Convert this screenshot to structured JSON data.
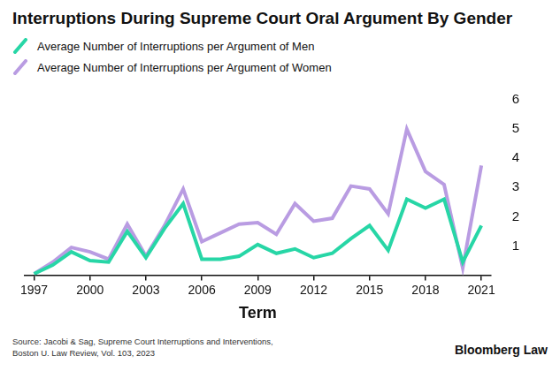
{
  "chart_data": {
    "type": "line",
    "title": "Interruptions During Supreme Court Oral Argument By Gender",
    "x_label": "Term",
    "categories": [
      "1997",
      null,
      null,
      "2000",
      null,
      null,
      "2003",
      null,
      null,
      "2006",
      null,
      null,
      "2009",
      null,
      null,
      "2012",
      null,
      null,
      "2015",
      null,
      null,
      "2018",
      null,
      null,
      "2021"
    ],
    "series": [
      {
        "name": "Average Number of Interruptions per Argument of Men",
        "color": "#27d6a6",
        "values": [
          0.05,
          0.35,
          0.8,
          0.5,
          0.45,
          1.5,
          0.6,
          1.6,
          2.45,
          0.55,
          0.55,
          0.65,
          1.05,
          0.75,
          0.9,
          0.6,
          0.75,
          1.25,
          1.7,
          0.85,
          2.6,
          2.3,
          2.6,
          0.45,
          1.7
        ]
      },
      {
        "name": "Average Number of Interruptions per Argument of Women",
        "color": "#b99ce2",
        "values": [
          0.05,
          0.45,
          0.95,
          0.8,
          0.55,
          1.75,
          0.65,
          1.7,
          2.95,
          1.15,
          1.45,
          1.75,
          1.8,
          1.4,
          2.45,
          1.85,
          1.95,
          3.05,
          2.95,
          2.1,
          5.0,
          3.55,
          3.1,
          0.25,
          3.75
        ]
      }
    ],
    "ylim": [
      0,
      6
    ],
    "yticks": [
      1,
      2,
      3,
      4,
      5,
      6
    ],
    "grid": false,
    "legend": "top-left",
    "source": [
      "Source: Jacobi & Sag, Supreme Court Interruptions and Interventions,",
      "Boston U. Law Review, Vol. 103, 2023"
    ],
    "credit": "Bloomberg Law"
  }
}
